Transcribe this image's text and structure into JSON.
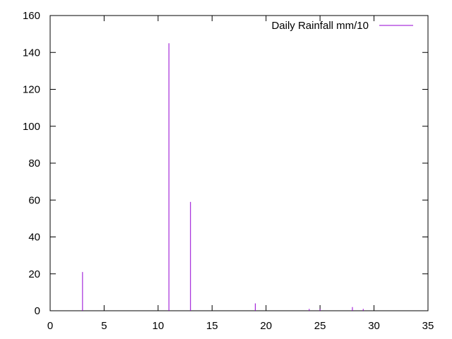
{
  "chart_data": {
    "type": "bar",
    "title": "",
    "xlabel": "",
    "ylabel": "",
    "xlim": [
      0,
      35
    ],
    "ylim": [
      0,
      160
    ],
    "xticks": [
      0,
      5,
      10,
      15,
      20,
      25,
      30,
      35
    ],
    "yticks": [
      0,
      20,
      40,
      60,
      80,
      100,
      120,
      140,
      160
    ],
    "grid": false,
    "legend_position": "top-right",
    "series": [
      {
        "name": "Daily Rainfall mm/10",
        "color": "#9400d3",
        "style": "impulses",
        "points": [
          {
            "x": 3,
            "y": 21
          },
          {
            "x": 11,
            "y": 145
          },
          {
            "x": 13,
            "y": 59
          },
          {
            "x": 19,
            "y": 4
          },
          {
            "x": 24,
            "y": 1
          },
          {
            "x": 25,
            "y": 1
          },
          {
            "x": 28,
            "y": 2
          },
          {
            "x": 29,
            "y": 1
          }
        ]
      }
    ]
  }
}
